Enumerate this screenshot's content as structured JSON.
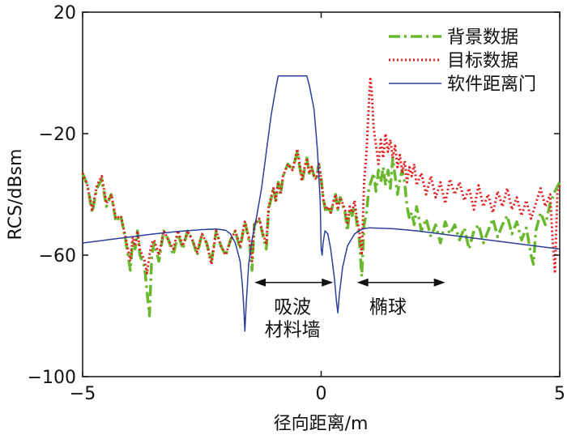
{
  "chart_data": {
    "type": "line",
    "title": "",
    "xlabel": "径向距离/m",
    "ylabel": "RCS/dBsm",
    "xlim": [
      -5,
      5
    ],
    "ylim": [
      -100,
      20
    ],
    "xticks": [
      -5,
      0,
      5
    ],
    "yticks": [
      -100,
      -60,
      -20,
      20
    ],
    "xtick_labels": [
      "−5",
      "0",
      "5"
    ],
    "ytick_labels": [
      "−100",
      "−60",
      "−20",
      "20"
    ],
    "grid": false,
    "legend_position": "top-right",
    "series": [
      {
        "name": "背景数据",
        "color": "#6ab82e",
        "style": "dash-dot",
        "points": [
          [
            -5.0,
            -33
          ],
          [
            -4.9,
            -37
          ],
          [
            -4.8,
            -46
          ],
          [
            -4.7,
            -38
          ],
          [
            -4.6,
            -35
          ],
          [
            -4.5,
            -44
          ],
          [
            -4.4,
            -40
          ],
          [
            -4.3,
            -49
          ],
          [
            -4.2,
            -47
          ],
          [
            -4.1,
            -55
          ],
          [
            -4.05,
            -60
          ],
          [
            -4.0,
            -65
          ],
          [
            -3.95,
            -55
          ],
          [
            -3.9,
            -58
          ],
          [
            -3.85,
            -52
          ],
          [
            -3.8,
            -60
          ],
          [
            -3.7,
            -64
          ],
          [
            -3.65,
            -72
          ],
          [
            -3.6,
            -80
          ],
          [
            -3.55,
            -60
          ],
          [
            -3.5,
            -56
          ],
          [
            -3.4,
            -62
          ],
          [
            -3.3,
            -52
          ],
          [
            -3.2,
            -55
          ],
          [
            -3.1,
            -60
          ],
          [
            -3.0,
            -53
          ],
          [
            -2.9,
            -58
          ],
          [
            -2.8,
            -52
          ],
          [
            -2.7,
            -55
          ],
          [
            -2.6,
            -60
          ],
          [
            -2.5,
            -53
          ],
          [
            -2.4,
            -56
          ],
          [
            -2.3,
            -62
          ],
          [
            -2.2,
            -52
          ],
          [
            -2.1,
            -57
          ],
          [
            -2.0,
            -60
          ],
          [
            -1.9,
            -55
          ],
          [
            -1.8,
            -52
          ],
          [
            -1.7,
            -58
          ],
          [
            -1.6,
            -49
          ],
          [
            -1.5,
            -56
          ],
          [
            -1.45,
            -65
          ],
          [
            -1.4,
            -50
          ],
          [
            -1.3,
            -48
          ],
          [
            -1.2,
            -55
          ],
          [
            -1.15,
            -58
          ],
          [
            -1.1,
            -45
          ],
          [
            -1.0,
            -38
          ],
          [
            -0.95,
            -42
          ],
          [
            -0.9,
            -36
          ],
          [
            -0.85,
            -40
          ],
          [
            -0.8,
            -34
          ],
          [
            -0.7,
            -30
          ],
          [
            -0.6,
            -32
          ],
          [
            -0.5,
            -26
          ],
          [
            -0.4,
            -36
          ],
          [
            -0.3,
            -28
          ],
          [
            -0.25,
            -33
          ],
          [
            -0.2,
            -31
          ],
          [
            -0.15,
            -34
          ],
          [
            -0.1,
            -35
          ],
          [
            -0.05,
            -30
          ],
          [
            0.0,
            -35
          ],
          [
            0.05,
            -42
          ],
          [
            0.1,
            -46
          ],
          [
            0.15,
            -44
          ],
          [
            0.2,
            -46
          ],
          [
            0.3,
            -40
          ],
          [
            0.35,
            -45
          ],
          [
            0.4,
            -41
          ],
          [
            0.5,
            -46
          ],
          [
            0.55,
            -52
          ],
          [
            0.6,
            -45
          ],
          [
            0.65,
            -47
          ],
          [
            0.7,
            -44
          ],
          [
            0.75,
            -50
          ],
          [
            0.8,
            -55
          ],
          [
            0.85,
            -67
          ],
          [
            0.9,
            -50
          ],
          [
            0.95,
            -46
          ],
          [
            1.0,
            -38
          ],
          [
            1.1,
            -33
          ],
          [
            1.15,
            -39
          ],
          [
            1.2,
            -32
          ],
          [
            1.25,
            -36
          ],
          [
            1.3,
            -31
          ],
          [
            1.35,
            -37
          ],
          [
            1.4,
            -32
          ],
          [
            1.45,
            -38
          ],
          [
            1.5,
            -28
          ],
          [
            1.55,
            -34
          ],
          [
            1.6,
            -40
          ],
          [
            1.65,
            -35
          ],
          [
            1.7,
            -32
          ],
          [
            1.75,
            -36
          ],
          [
            1.8,
            -44
          ],
          [
            1.85,
            -48
          ],
          [
            1.9,
            -46
          ],
          [
            1.95,
            -50
          ],
          [
            2.0,
            -44
          ],
          [
            2.1,
            -52
          ],
          [
            2.2,
            -48
          ],
          [
            2.3,
            -54
          ],
          [
            2.4,
            -50
          ],
          [
            2.5,
            -56
          ],
          [
            2.6,
            -49
          ],
          [
            2.7,
            -53
          ],
          [
            2.8,
            -50
          ],
          [
            2.9,
            -55
          ],
          [
            3.0,
            -51
          ],
          [
            3.1,
            -58
          ],
          [
            3.2,
            -52
          ],
          [
            3.3,
            -50
          ],
          [
            3.4,
            -56
          ],
          [
            3.5,
            -52
          ],
          [
            3.6,
            -48
          ],
          [
            3.7,
            -54
          ],
          [
            3.8,
            -50
          ],
          [
            3.9,
            -47
          ],
          [
            4.0,
            -53
          ],
          [
            4.1,
            -49
          ],
          [
            4.2,
            -55
          ],
          [
            4.3,
            -51
          ],
          [
            4.4,
            -60
          ],
          [
            4.45,
            -63
          ],
          [
            4.5,
            -52
          ],
          [
            4.6,
            -46
          ],
          [
            4.7,
            -50
          ],
          [
            4.8,
            -43
          ],
          [
            4.9,
            -39
          ],
          [
            5.0,
            -36
          ]
        ]
      },
      {
        "name": "目标数据",
        "color": "#e02020",
        "style": "dotted",
        "points": [
          [
            -5.0,
            -33
          ],
          [
            -4.9,
            -37
          ],
          [
            -4.8,
            -45
          ],
          [
            -4.7,
            -37
          ],
          [
            -4.6,
            -34
          ],
          [
            -4.5,
            -43
          ],
          [
            -4.4,
            -40
          ],
          [
            -4.3,
            -48
          ],
          [
            -4.2,
            -47
          ],
          [
            -4.1,
            -54
          ],
          [
            -4.05,
            -58
          ],
          [
            -4.0,
            -62
          ],
          [
            -3.95,
            -54
          ],
          [
            -3.9,
            -57
          ],
          [
            -3.85,
            -52
          ],
          [
            -3.8,
            -58
          ],
          [
            -3.7,
            -62
          ],
          [
            -3.65,
            -66
          ],
          [
            -3.6,
            -60
          ],
          [
            -3.55,
            -56
          ],
          [
            -3.5,
            -55
          ],
          [
            -3.4,
            -60
          ],
          [
            -3.3,
            -52
          ],
          [
            -3.2,
            -55
          ],
          [
            -3.1,
            -58
          ],
          [
            -3.0,
            -52
          ],
          [
            -2.9,
            -57
          ],
          [
            -2.8,
            -52
          ],
          [
            -2.7,
            -55
          ],
          [
            -2.6,
            -59
          ],
          [
            -2.5,
            -53
          ],
          [
            -2.4,
            -56
          ],
          [
            -2.3,
            -63
          ],
          [
            -2.2,
            -52
          ],
          [
            -2.1,
            -57
          ],
          [
            -2.0,
            -60
          ],
          [
            -1.9,
            -55
          ],
          [
            -1.8,
            -52
          ],
          [
            -1.7,
            -57
          ],
          [
            -1.6,
            -49
          ],
          [
            -1.5,
            -55
          ],
          [
            -1.45,
            -62
          ],
          [
            -1.4,
            -50
          ],
          [
            -1.3,
            -48
          ],
          [
            -1.2,
            -54
          ],
          [
            -1.15,
            -56
          ],
          [
            -1.1,
            -44
          ],
          [
            -1.0,
            -38
          ],
          [
            -0.95,
            -42
          ],
          [
            -0.9,
            -36
          ],
          [
            -0.85,
            -40
          ],
          [
            -0.8,
            -34
          ],
          [
            -0.7,
            -30
          ],
          [
            -0.6,
            -32
          ],
          [
            -0.5,
            -25
          ],
          [
            -0.4,
            -35
          ],
          [
            -0.3,
            -28
          ],
          [
            -0.25,
            -33
          ],
          [
            -0.2,
            -31
          ],
          [
            -0.15,
            -34
          ],
          [
            -0.1,
            -35
          ],
          [
            -0.05,
            -30
          ],
          [
            0.0,
            -35
          ],
          [
            0.05,
            -42
          ],
          [
            0.1,
            -45
          ],
          [
            0.15,
            -44
          ],
          [
            0.2,
            -46
          ],
          [
            0.3,
            -40
          ],
          [
            0.35,
            -45
          ],
          [
            0.4,
            -41
          ],
          [
            0.5,
            -45
          ],
          [
            0.55,
            -50
          ],
          [
            0.6,
            -44
          ],
          [
            0.65,
            -46
          ],
          [
            0.7,
            -42
          ],
          [
            0.75,
            -48
          ],
          [
            0.8,
            -52
          ],
          [
            0.85,
            -60
          ],
          [
            0.9,
            -36
          ],
          [
            0.95,
            -26
          ],
          [
            1.0,
            -10
          ],
          [
            1.03,
            -2
          ],
          [
            1.06,
            -6
          ],
          [
            1.1,
            -18
          ],
          [
            1.15,
            -24
          ],
          [
            1.2,
            -30
          ],
          [
            1.25,
            -22
          ],
          [
            1.3,
            -28
          ],
          [
            1.35,
            -20
          ],
          [
            1.4,
            -26
          ],
          [
            1.45,
            -22
          ],
          [
            1.5,
            -28
          ],
          [
            1.55,
            -24
          ],
          [
            1.6,
            -31
          ],
          [
            1.65,
            -27
          ],
          [
            1.7,
            -33
          ],
          [
            1.75,
            -29
          ],
          [
            1.8,
            -36
          ],
          [
            1.85,
            -31
          ],
          [
            1.9,
            -34
          ],
          [
            1.95,
            -30
          ],
          [
            2.0,
            -37
          ],
          [
            2.1,
            -33
          ],
          [
            2.2,
            -40
          ],
          [
            2.3,
            -34
          ],
          [
            2.4,
            -41
          ],
          [
            2.5,
            -36
          ],
          [
            2.6,
            -43
          ],
          [
            2.7,
            -35
          ],
          [
            2.8,
            -40
          ],
          [
            2.9,
            -36
          ],
          [
            3.0,
            -42
          ],
          [
            3.1,
            -38
          ],
          [
            3.2,
            -45
          ],
          [
            3.3,
            -37
          ],
          [
            3.4,
            -44
          ],
          [
            3.5,
            -40
          ],
          [
            3.6,
            -46
          ],
          [
            3.7,
            -39
          ],
          [
            3.8,
            -44
          ],
          [
            3.9,
            -38
          ],
          [
            4.0,
            -45
          ],
          [
            4.1,
            -41
          ],
          [
            4.2,
            -47
          ],
          [
            4.3,
            -42
          ],
          [
            4.4,
            -48
          ],
          [
            4.5,
            -43
          ],
          [
            4.6,
            -38
          ],
          [
            4.7,
            -44
          ],
          [
            4.8,
            -40
          ],
          [
            4.85,
            -55
          ],
          [
            4.9,
            -66
          ],
          [
            4.95,
            -40
          ],
          [
            5.0,
            -37
          ]
        ]
      },
      {
        "name": "软件距离门",
        "color": "#2a3f9a",
        "style": "solid",
        "points": [
          [
            -5.0,
            -56
          ],
          [
            -4.5,
            -55
          ],
          [
            -4.0,
            -54
          ],
          [
            -3.5,
            -53
          ],
          [
            -3.0,
            -52.2
          ],
          [
            -2.5,
            -51.6
          ],
          [
            -2.2,
            -51.4
          ],
          [
            -2.0,
            -51.8
          ],
          [
            -1.9,
            -53
          ],
          [
            -1.8,
            -56
          ],
          [
            -1.7,
            -62
          ],
          [
            -1.65,
            -70
          ],
          [
            -1.62,
            -78
          ],
          [
            -1.6,
            -85
          ],
          [
            -1.57,
            -76
          ],
          [
            -1.52,
            -63
          ],
          [
            -1.45,
            -55
          ],
          [
            -1.35,
            -47
          ],
          [
            -1.25,
            -38
          ],
          [
            -1.15,
            -26
          ],
          [
            -1.05,
            -14
          ],
          [
            -0.95,
            -5
          ],
          [
            -0.9,
            -1
          ],
          [
            -0.3,
            -1
          ],
          [
            -0.25,
            -4
          ],
          [
            -0.15,
            -12
          ],
          [
            -0.08,
            -25
          ],
          [
            -0.02,
            -42
          ],
          [
            0.0,
            -58
          ],
          [
            0.02,
            -60
          ],
          [
            0.04,
            -56
          ],
          [
            0.08,
            -52
          ],
          [
            0.14,
            -53
          ],
          [
            0.2,
            -58
          ],
          [
            0.28,
            -68
          ],
          [
            0.32,
            -75
          ],
          [
            0.35,
            -79
          ],
          [
            0.38,
            -73
          ],
          [
            0.45,
            -64
          ],
          [
            0.55,
            -57
          ],
          [
            0.7,
            -53
          ],
          [
            0.85,
            -51.5
          ],
          [
            1.0,
            -51
          ],
          [
            1.5,
            -51.3
          ],
          [
            2.0,
            -52
          ],
          [
            2.5,
            -53
          ],
          [
            3.0,
            -54
          ],
          [
            3.5,
            -55
          ],
          [
            4.0,
            -56
          ],
          [
            4.5,
            -57
          ],
          [
            5.0,
            -58
          ]
        ]
      }
    ],
    "annotations": [
      {
        "text_lines": [
          "吸波",
          "材料墙"
        ],
        "arrow_from": -1.4,
        "arrow_to": 0.25,
        "arrow_y": -69,
        "text_x": -0.6,
        "text_y": -79
      },
      {
        "text_lines": [
          "椭球"
        ],
        "arrow_from": 0.75,
        "arrow_to": 2.6,
        "arrow_y": -69,
        "text_x": 1.4,
        "text_y": -79
      }
    ]
  }
}
